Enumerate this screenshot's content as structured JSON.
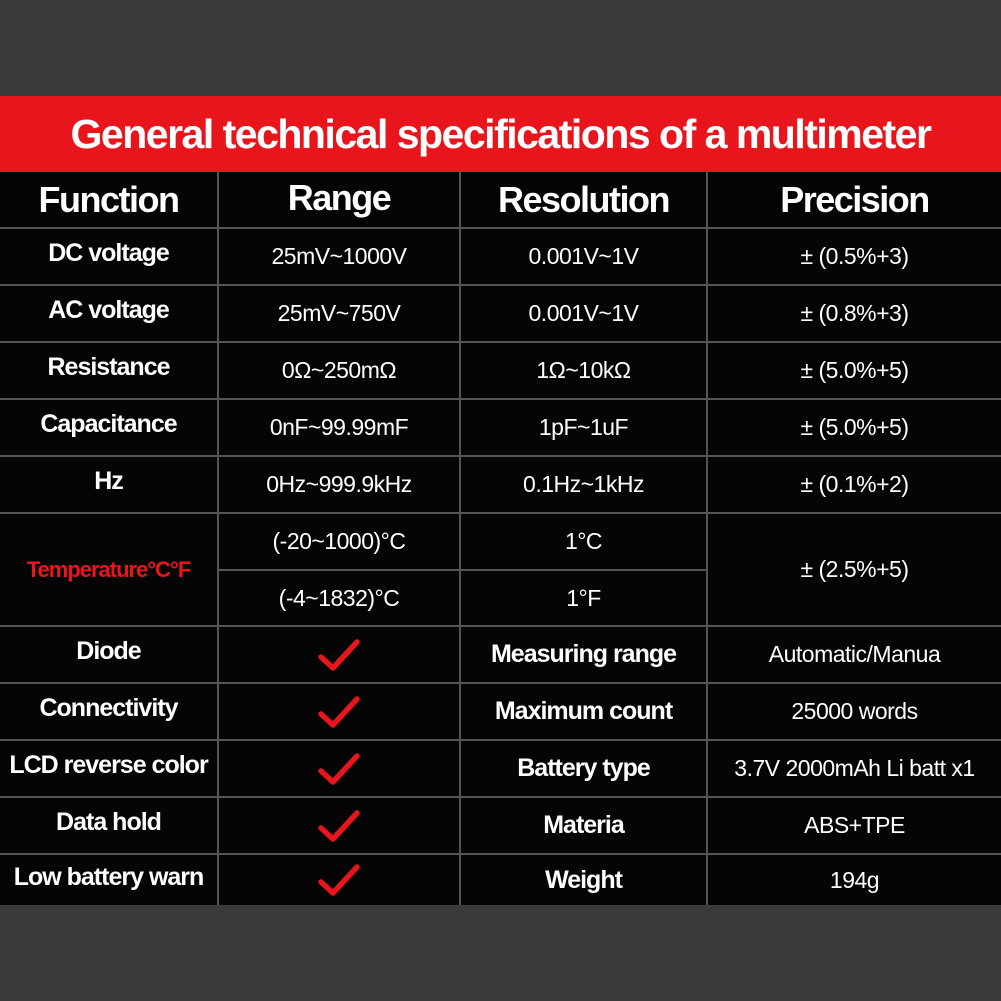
{
  "title": "General technical specifications of a multimeter",
  "colors": {
    "accent": "#e8161c",
    "table_background": "#050505",
    "page_background": "#3a3a3a",
    "grid_line": "#555555",
    "check_color": "#e8161c"
  },
  "headers": {
    "function": "Function",
    "range": "Range",
    "resolution": "Resolution",
    "precision": "Precision"
  },
  "measurements": [
    {
      "function": "DC voltage",
      "range": "25mV~1000V",
      "resolution": "0.001V~1V",
      "precision": "± (0.5%+3)"
    },
    {
      "function": "AC voltage",
      "range": "25mV~750V",
      "resolution": "0.001V~1V",
      "precision": "± (0.8%+3)"
    },
    {
      "function": "Resistance",
      "range": "0Ω~250mΩ",
      "resolution": "1Ω~10kΩ",
      "precision": "± (5.0%+5)"
    },
    {
      "function": "Capacitance",
      "range": "0nF~99.99mF",
      "resolution": "1pF~1uF",
      "precision": "± (5.0%+5)"
    },
    {
      "function": "Hz",
      "range": "0Hz~999.9kHz",
      "resolution": "0.1Hz~1kHz",
      "precision": "± (0.1%+2)"
    }
  ],
  "temperature": {
    "function": "Temperature°C°F",
    "range_c": "(-20~1000)°C",
    "resolution_c": "1°C",
    "range_f": "(-4~1832)°C",
    "resolution_f": "1°F",
    "precision": "± (2.5%+5)"
  },
  "features": [
    {
      "function": "Diode",
      "supported": true,
      "spec": "Measuring range",
      "value": "Automatic/Manua",
      "check_icon": "checkmark-icon"
    },
    {
      "function": "Connectivity",
      "supported": true,
      "spec": "Maximum count",
      "value": "25000 words",
      "check_icon": "checkmark-icon"
    },
    {
      "function": "LCD reverse color",
      "supported": true,
      "spec": "Battery type",
      "value": "3.7V 2000mAh Li batt x1",
      "check_icon": "checkmark-icon"
    },
    {
      "function": "Data hold",
      "supported": true,
      "spec": "Materia",
      "value": "ABS+TPE",
      "check_icon": "checkmark-icon"
    },
    {
      "function": "Low battery warn",
      "supported": true,
      "spec": "Weight",
      "value": "194g",
      "check_icon": "checkmark-icon"
    }
  ]
}
